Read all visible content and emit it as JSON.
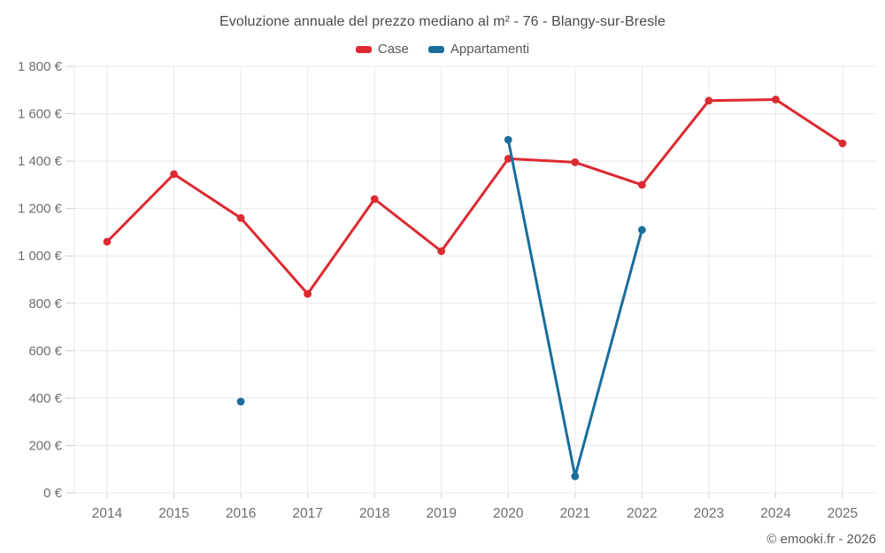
{
  "chart_data": {
    "type": "line",
    "title": "Evoluzione annuale del prezzo mediano al m² - 76 - Blangy-sur-Bresle",
    "categories": [
      "2014",
      "2015",
      "2016",
      "2017",
      "2018",
      "2019",
      "2020",
      "2021",
      "2022",
      "2023",
      "2024",
      "2025"
    ],
    "series": [
      {
        "name": "Case",
        "color": "#dc2a31",
        "values": [
          1060,
          1345,
          1160,
          840,
          1240,
          1020,
          1410,
          1395,
          1300,
          1655,
          1660,
          1475
        ]
      },
      {
        "name": "Appartamenti",
        "color": "#1a6d9d",
        "values": [
          null,
          null,
          385,
          null,
          null,
          null,
          1490,
          70,
          1110,
          null,
          null,
          null
        ]
      }
    ],
    "ylim": [
      0,
      1800
    ],
    "ytick_step": 200,
    "ytick_labels": [
      "0 €",
      "200 €",
      "400 €",
      "600 €",
      "800 €",
      "1 000 €",
      "1 200 €",
      "1 400 €",
      "1 600 €",
      "1 800 €"
    ],
    "grid": true,
    "legend_position": "top",
    "footer": "© emooki.fr - 2026"
  },
  "colors": {
    "background": "#ffffff",
    "grid": "#e9e9e9",
    "tick": "#cccccc",
    "axis_text": "#6e6e6e",
    "title_text": "#4a4a4a",
    "legend_text": "#565656",
    "footer_text": "#5d5d5d"
  }
}
